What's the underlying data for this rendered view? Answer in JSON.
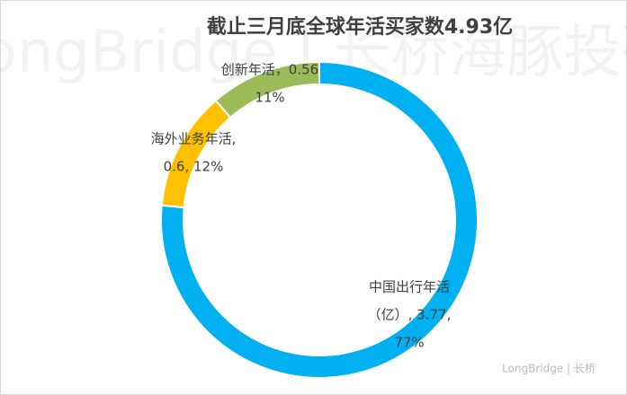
{
  "chart_data": {
    "type": "donut",
    "title": "截止三月底全球年活买家数4.93亿",
    "watermark": "LongBridge | 长桥海豚投研",
    "logo": "LongBridge | 长桥",
    "categories": [
      "中国出行年活（亿）",
      "海外业务年活",
      "创新年活"
    ],
    "values": [
      3.77,
      0.6,
      0.56
    ],
    "percents": [
      77,
      12,
      11
    ],
    "value_labels": [
      [
        "中国出行年活",
        "（亿）, 3.77,",
        "77%"
      ],
      [
        "海外业务年活,",
        "0.6, 12%"
      ],
      [
        "创新年活，0.56",
        "11%"
      ]
    ],
    "colors": [
      "#00b0f0",
      "#ffc000",
      "#9bbb59"
    ]
  }
}
